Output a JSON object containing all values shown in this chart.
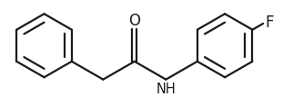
{
  "bg_color": "#ffffff",
  "line_color": "#1a1a1a",
  "line_width": 1.6,
  "F_label": "F",
  "O_label": "O",
  "NH_label": "NH",
  "font_size_atom": 10.5,
  "r_ring": 0.72,
  "r_inner_ratio": 0.73
}
